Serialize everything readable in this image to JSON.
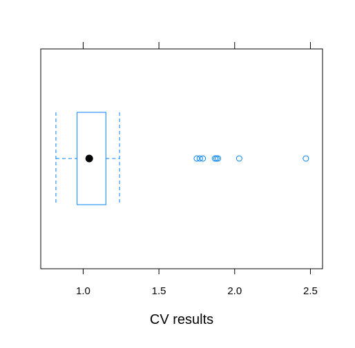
{
  "chart_data": {
    "type": "boxplot",
    "orientation": "horizontal",
    "title": "",
    "xlabel": "CV results",
    "ylabel": "",
    "xlim": [
      0.72,
      2.58
    ],
    "xticks": [
      1.0,
      1.5,
      2.0,
      2.5
    ],
    "xtick_labels": [
      "1.0",
      "1.5",
      "2.0",
      "2.5"
    ],
    "box": {
      "whisker_low": 0.82,
      "q1": 0.96,
      "median": 1.04,
      "q3": 1.15,
      "whisker_high": 1.24
    },
    "outliers": [
      1.75,
      1.77,
      1.79,
      1.87,
      1.88,
      1.89,
      2.03,
      2.47
    ],
    "colors": {
      "box": "#0080ff",
      "median_dot": "#000000",
      "frame": "#000000"
    }
  }
}
